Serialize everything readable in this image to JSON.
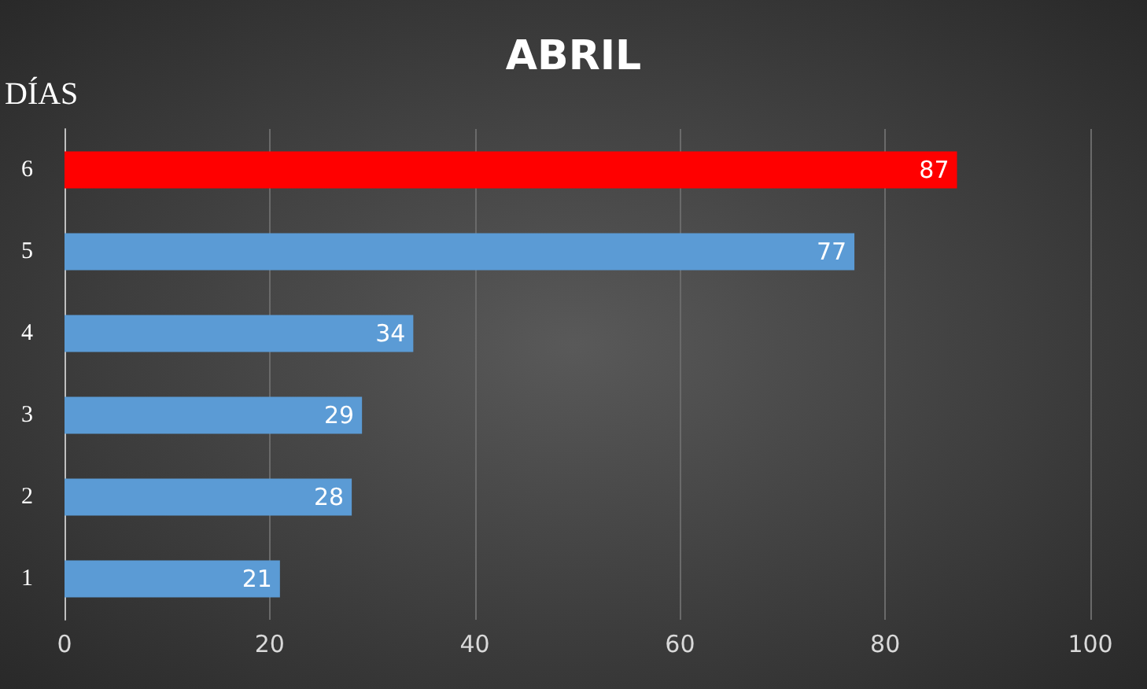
{
  "chart_data": {
    "type": "bar",
    "orientation": "horizontal",
    "title": "ABRIL",
    "ylabel": "DÍAS",
    "categories": [
      "6",
      "5",
      "4",
      "3",
      "2",
      "1"
    ],
    "values": [
      87,
      77,
      34,
      29,
      28,
      21
    ],
    "colors": [
      "#ff0000",
      "#5b9bd5",
      "#5b9bd5",
      "#5b9bd5",
      "#5b9bd5",
      "#5b9bd5"
    ],
    "xlim": [
      0,
      100
    ],
    "xticks": [
      0,
      20,
      40,
      60,
      80,
      100
    ],
    "grid": "x",
    "data_labels": true
  }
}
